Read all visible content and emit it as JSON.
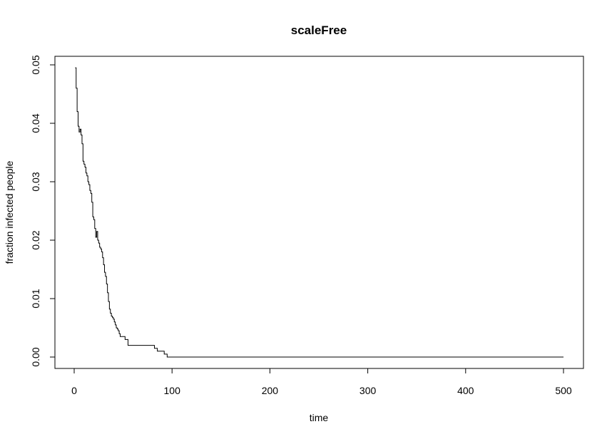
{
  "chart_data": {
    "type": "line",
    "title": "scaleFree",
    "xlabel": "time",
    "ylabel": "fraction infected people",
    "xlim": [
      0,
      500
    ],
    "ylim": [
      0,
      0.05
    ],
    "x_ticks": [
      0,
      100,
      200,
      300,
      400,
      500
    ],
    "x_tick_labels": [
      "0",
      "100",
      "200",
      "300",
      "400",
      "500"
    ],
    "y_ticks": [
      0,
      0.01,
      0.02,
      0.03,
      0.04,
      0.05
    ],
    "y_tick_labels": [
      "0.00",
      "0.01",
      "0.02",
      "0.03",
      "0.04",
      "0.05"
    ],
    "grid": false,
    "line_style": "step",
    "colors": {
      "line": "#000000",
      "axis": "#000000",
      "background": "#ffffff"
    },
    "series": [
      {
        "x": [
          1,
          2,
          3,
          4,
          5,
          6,
          7,
          8,
          9,
          10,
          11,
          12,
          13,
          14,
          15,
          16,
          17,
          18,
          19,
          20,
          21,
          22,
          23,
          24,
          25,
          26,
          27,
          28,
          29,
          30,
          31,
          32,
          33,
          34,
          35,
          36,
          37,
          38,
          39,
          40,
          41,
          42,
          43,
          44,
          45,
          46,
          47,
          48,
          49,
          50,
          52,
          55,
          57,
          60,
          65,
          70,
          75,
          80,
          82,
          85,
          88,
          90,
          92,
          95,
          100,
          150,
          200,
          250,
          300,
          350,
          400,
          450,
          500
        ],
        "y": [
          0.0495,
          0.046,
          0.042,
          0.0395,
          0.0385,
          0.039,
          0.038,
          0.0365,
          0.0335,
          0.033,
          0.0325,
          0.0315,
          0.031,
          0.03,
          0.0295,
          0.0285,
          0.028,
          0.0265,
          0.024,
          0.0235,
          0.022,
          0.0205,
          0.0215,
          0.02,
          0.0195,
          0.0188,
          0.0185,
          0.018,
          0.017,
          0.0158,
          0.0145,
          0.0138,
          0.0125,
          0.011,
          0.0095,
          0.0082,
          0.0075,
          0.007,
          0.0068,
          0.0065,
          0.006,
          0.0055,
          0.005,
          0.0048,
          0.0045,
          0.004,
          0.0035,
          0.0035,
          0.0035,
          0.0035,
          0.003,
          0.002,
          0.002,
          0.002,
          0.002,
          0.002,
          0.002,
          0.002,
          0.0015,
          0.001,
          0.001,
          0.001,
          0.0005,
          0.0,
          0.0,
          0.0,
          0.0,
          0.0,
          0.0,
          0.0,
          0.0,
          0.0,
          0.0
        ]
      }
    ]
  }
}
